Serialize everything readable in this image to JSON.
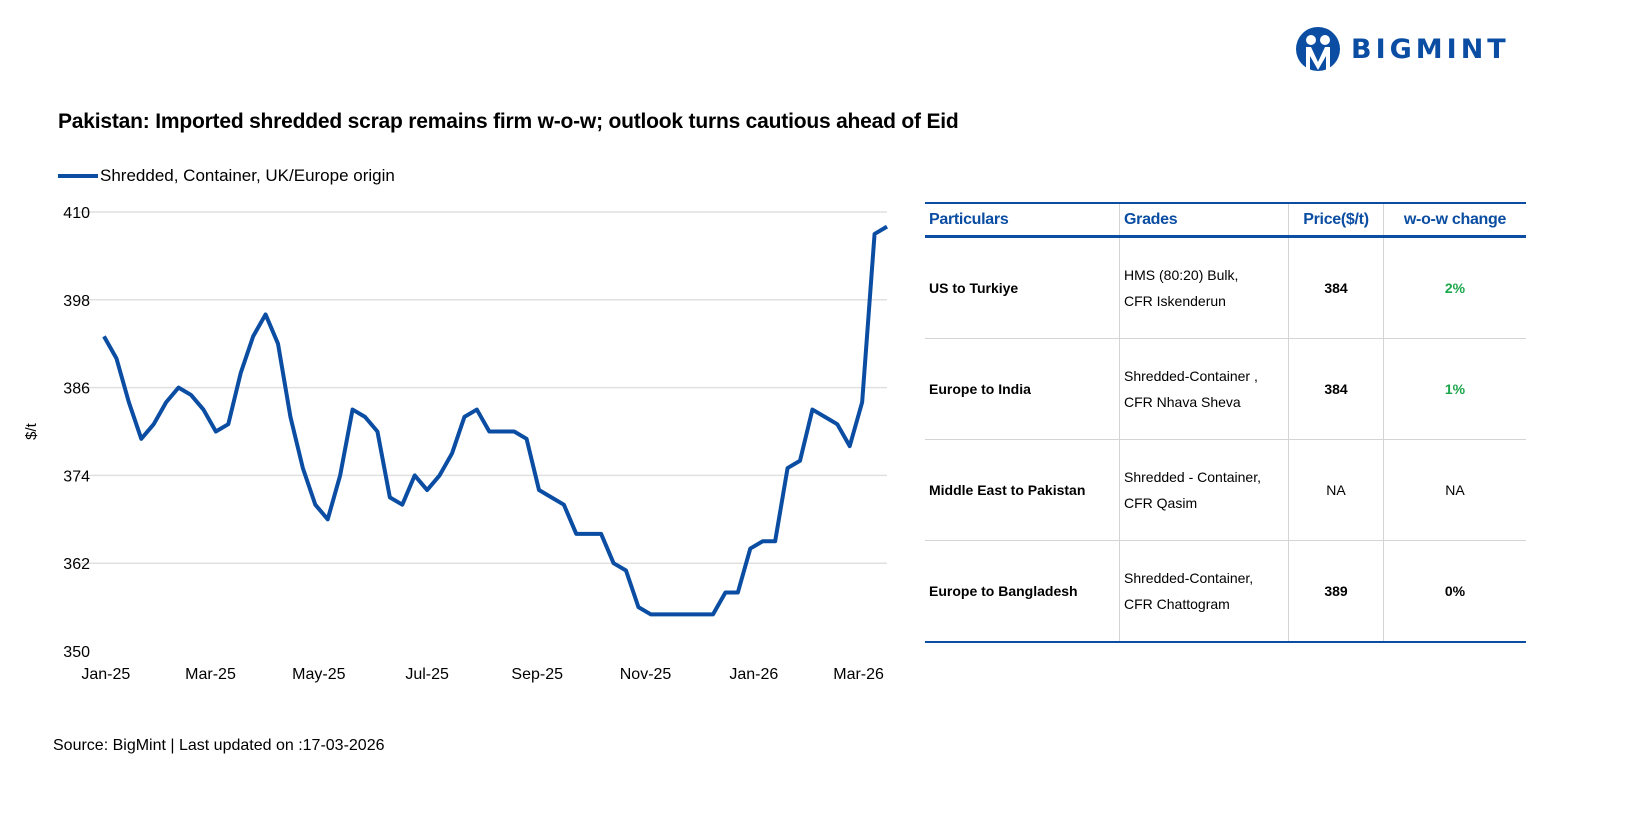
{
  "brand": {
    "logo_text": "BIGMINT",
    "color": "#0a4da2"
  },
  "title": "Pakistan: Imported shredded scrap remains firm w-o-w; outlook turns cautious ahead of Eid",
  "source": "Source: BigMint | Last updated on :17-03-2026",
  "chart_data": {
    "type": "line",
    "title": "",
    "ylabel": "$/t",
    "xlabel": "",
    "ylim": [
      350,
      410
    ],
    "yticks": [
      350,
      362,
      374,
      386,
      398,
      410
    ],
    "xticks": [
      {
        "label": "Jan-25",
        "date": "2025-01-01"
      },
      {
        "label": "Mar-25",
        "date": "2025-03-01"
      },
      {
        "label": "May-25",
        "date": "2025-05-01"
      },
      {
        "label": "Jul-25",
        "date": "2025-07-01"
      },
      {
        "label": "Sep-25",
        "date": "2025-09-01"
      },
      {
        "label": "Nov-25",
        "date": "2025-11-01"
      },
      {
        "label": "Jan-26",
        "date": "2026-01-01"
      },
      {
        "label": "Mar-26",
        "date": "2026-03-01"
      }
    ],
    "grid": "horizontal",
    "legend": "top-left",
    "series": [
      {
        "name": "Shredded, Container, UK/Europe origin",
        "color": "#0a4da2",
        "frequency": "weekly",
        "x_end": "2026-03-17",
        "values": [
          393,
          390,
          384,
          379,
          381,
          384,
          386,
          385,
          383,
          380,
          381,
          388,
          393,
          396,
          392,
          382,
          375,
          370,
          368,
          374,
          383,
          382,
          380,
          371,
          370,
          374,
          372,
          374,
          377,
          382,
          383,
          380,
          380,
          380,
          379,
          372,
          371,
          370,
          366,
          366,
          366,
          362,
          361,
          356,
          355,
          355,
          355,
          355,
          355,
          355,
          358,
          358,
          364,
          365,
          365,
          375,
          376,
          383,
          382,
          381,
          378,
          384,
          407,
          408
        ]
      }
    ]
  },
  "table": {
    "headers": [
      "Particulars",
      "Grades",
      "Price($/t)",
      "w-o-w change"
    ],
    "rows": [
      {
        "particulars": "US to Turkiye",
        "grade_line1": "HMS (80:20) Bulk,",
        "grade_line2": "CFR Iskenderun",
        "price": "384",
        "change": "2%",
        "change_color": "#1aa64a"
      },
      {
        "particulars": "Europe to India",
        "grade_line1": "Shredded-Container ,",
        "grade_line2": "CFR Nhava Sheva",
        "price": "384",
        "change": "1%",
        "change_color": "#1aa64a"
      },
      {
        "particulars": "Middle East to Pakistan",
        "grade_line1": "Shredded - Container,",
        "grade_line2": "CFR Qasim",
        "price": "NA",
        "change": "NA",
        "change_color": "#000000"
      },
      {
        "particulars": "Europe to Bangladesh",
        "grade_line1": "Shredded-Container,",
        "grade_line2": "CFR Chattogram",
        "price": "389",
        "change": "0%",
        "change_color": "#000000"
      }
    ]
  }
}
